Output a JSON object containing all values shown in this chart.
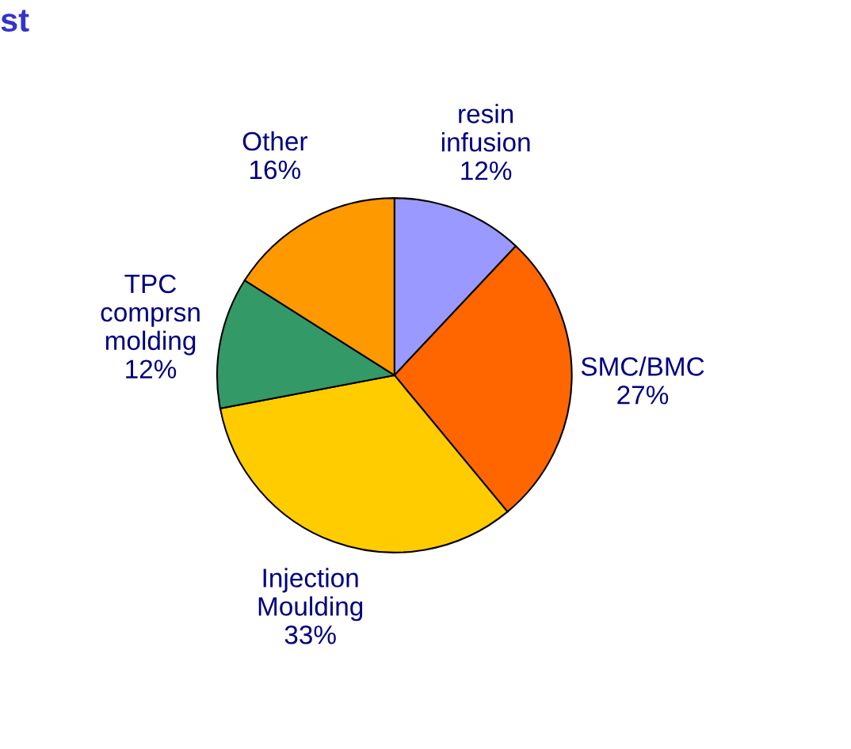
{
  "chart_data": {
    "type": "pie",
    "title": "st",
    "categories": [
      "resin\ninfusion",
      "SMC/BMC",
      "Injection\nMoulding",
      "TPC\ncomprsn\nmolding",
      "Other"
    ],
    "values": [
      12,
      27,
      33,
      12,
      16
    ],
    "colors": [
      "#9999ff",
      "#ff6600",
      "#ffcc00",
      "#339966",
      "#ff9900"
    ],
    "value_labels": [
      "12%",
      "27%",
      "33%",
      "12%",
      "16%"
    ]
  }
}
